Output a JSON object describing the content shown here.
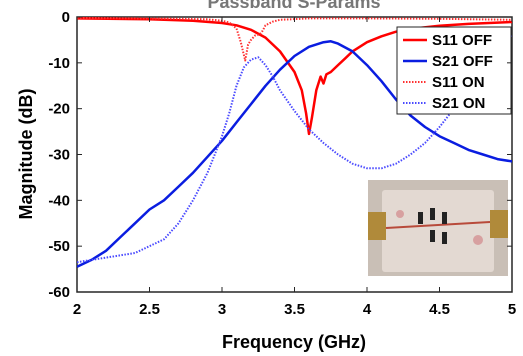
{
  "chart_data": {
    "type": "line",
    "title": "Passband S-Params",
    "xlabel": "Frequency (GHz)",
    "ylabel": "Magnitude (dB)",
    "xlim": [
      2,
      5
    ],
    "ylim": [
      -60,
      0
    ],
    "xticks": [
      "2",
      "2.5",
      "3",
      "3.5",
      "4",
      "4.5",
      "5"
    ],
    "yticks": [
      "0",
      "-10",
      "-20",
      "-30",
      "-40",
      "-50",
      "-60"
    ],
    "grid": false,
    "legend_position": "top-right",
    "series": [
      {
        "name": "S11 OFF",
        "color": "#ff0000",
        "style": "solid",
        "points": [
          [
            2.0,
            -0.3
          ],
          [
            2.5,
            -0.5
          ],
          [
            2.8,
            -0.8
          ],
          [
            3.0,
            -1.3
          ],
          [
            3.1,
            -1.8
          ],
          [
            3.2,
            -2.8
          ],
          [
            3.3,
            -4.5
          ],
          [
            3.4,
            -7.5
          ],
          [
            3.5,
            -12
          ],
          [
            3.55,
            -16
          ],
          [
            3.58,
            -21
          ],
          [
            3.6,
            -25.5
          ],
          [
            3.62,
            -22
          ],
          [
            3.65,
            -16
          ],
          [
            3.68,
            -13
          ],
          [
            3.7,
            -14.5
          ],
          [
            3.72,
            -12.5
          ],
          [
            3.75,
            -12
          ],
          [
            3.8,
            -10.5
          ],
          [
            3.85,
            -9
          ],
          [
            3.9,
            -7.5
          ],
          [
            4.0,
            -5.5
          ],
          [
            4.1,
            -4.2
          ],
          [
            4.2,
            -3.2
          ],
          [
            4.3,
            -2.6
          ],
          [
            4.5,
            -1.9
          ],
          [
            4.7,
            -1.5
          ],
          [
            5.0,
            -1.1
          ]
        ]
      },
      {
        "name": "S21 OFF",
        "color": "#0a1de0",
        "style": "solid",
        "points": [
          [
            2.0,
            -54.5
          ],
          [
            2.1,
            -53
          ],
          [
            2.2,
            -51
          ],
          [
            2.3,
            -48
          ],
          [
            2.4,
            -45
          ],
          [
            2.5,
            -42
          ],
          [
            2.6,
            -40
          ],
          [
            2.7,
            -37
          ],
          [
            2.8,
            -34
          ],
          [
            2.9,
            -30.5
          ],
          [
            3.0,
            -27
          ],
          [
            3.1,
            -23
          ],
          [
            3.2,
            -19
          ],
          [
            3.3,
            -15
          ],
          [
            3.4,
            -11.5
          ],
          [
            3.5,
            -8.5
          ],
          [
            3.6,
            -6.5
          ],
          [
            3.7,
            -5.5
          ],
          [
            3.75,
            -5.3
          ],
          [
            3.8,
            -5.8
          ],
          [
            3.9,
            -7.5
          ],
          [
            4.0,
            -10.5
          ],
          [
            4.1,
            -14
          ],
          [
            4.2,
            -18
          ],
          [
            4.3,
            -21.5
          ],
          [
            4.4,
            -24
          ],
          [
            4.5,
            -26
          ],
          [
            4.6,
            -27.5
          ],
          [
            4.7,
            -29
          ],
          [
            4.8,
            -30
          ],
          [
            4.9,
            -31
          ],
          [
            5.0,
            -31.5
          ]
        ]
      },
      {
        "name": "S11 ON",
        "color": "#ff3030",
        "style": "dotted",
        "points": [
          [
            2.0,
            -0.2
          ],
          [
            2.5,
            -0.3
          ],
          [
            2.9,
            -0.5
          ],
          [
            3.0,
            -0.8
          ],
          [
            3.05,
            -1.2
          ],
          [
            3.1,
            -2.5
          ],
          [
            3.13,
            -5.5
          ],
          [
            3.16,
            -9.5
          ],
          [
            3.18,
            -6
          ],
          [
            3.2,
            -5
          ],
          [
            3.23,
            -4
          ],
          [
            3.26,
            -3.8
          ],
          [
            3.28,
            -3
          ],
          [
            3.3,
            -1.8
          ],
          [
            3.35,
            -1
          ],
          [
            3.4,
            -0.6
          ],
          [
            3.6,
            -0.3
          ],
          [
            4.0,
            -0.3
          ],
          [
            4.5,
            -0.4
          ],
          [
            5.0,
            -0.6
          ]
        ]
      },
      {
        "name": "S21 ON",
        "color": "#4a4aff",
        "style": "dotted",
        "points": [
          [
            2.0,
            -53.5
          ],
          [
            2.2,
            -52.5
          ],
          [
            2.4,
            -51.5
          ],
          [
            2.6,
            -48.5
          ],
          [
            2.7,
            -45
          ],
          [
            2.8,
            -40
          ],
          [
            2.9,
            -34
          ],
          [
            3.0,
            -26
          ],
          [
            3.05,
            -21
          ],
          [
            3.1,
            -15
          ],
          [
            3.15,
            -11
          ],
          [
            3.2,
            -9.3
          ],
          [
            3.25,
            -8.8
          ],
          [
            3.3,
            -10.5
          ],
          [
            3.35,
            -13
          ],
          [
            3.4,
            -16
          ],
          [
            3.5,
            -20.5
          ],
          [
            3.6,
            -24.5
          ],
          [
            3.7,
            -27.5
          ],
          [
            3.8,
            -30
          ],
          [
            3.9,
            -32
          ],
          [
            4.0,
            -33
          ],
          [
            4.1,
            -33
          ],
          [
            4.2,
            -32
          ],
          [
            4.3,
            -30
          ],
          [
            4.4,
            -27.5
          ],
          [
            4.5,
            -24
          ],
          [
            4.6,
            -20
          ],
          [
            4.7,
            -15
          ],
          [
            4.8,
            -10
          ],
          [
            4.9,
            -6
          ],
          [
            5.0,
            -4
          ]
        ]
      }
    ]
  },
  "inset": {
    "background": "#c9bfb6",
    "board_color": "#e3d9d2",
    "trace_color": "#b84a3a"
  }
}
